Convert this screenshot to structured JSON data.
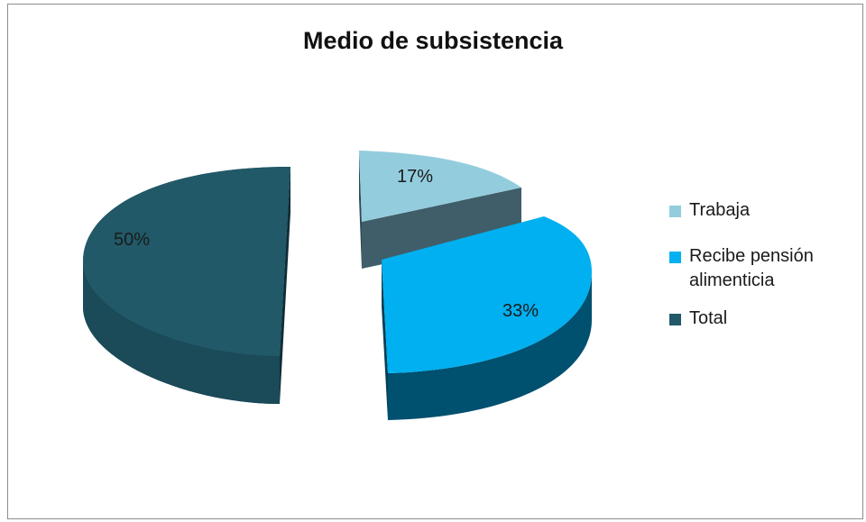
{
  "chart_data": {
    "type": "pie",
    "title": "Medio de subsistencia",
    "categories": [
      "Trabaja",
      "Recibe pensión alimenticia",
      "Total"
    ],
    "values": [
      17,
      33,
      50
    ],
    "data_labels": [
      "17%",
      "33%",
      "50%"
    ],
    "colors": [
      "#93cddd",
      "#00b0f0",
      "#215968"
    ],
    "style": "3d-exploded",
    "legend_position": "right"
  },
  "legend": {
    "items": [
      {
        "label_lines": [
          "Trabaja"
        ],
        "color": "#93cddd"
      },
      {
        "label_lines": [
          "Recibe pensión",
          "alimenticia"
        ],
        "color": "#00b0f0"
      },
      {
        "label_lines": [
          "Total"
        ],
        "color": "#215968"
      }
    ]
  }
}
